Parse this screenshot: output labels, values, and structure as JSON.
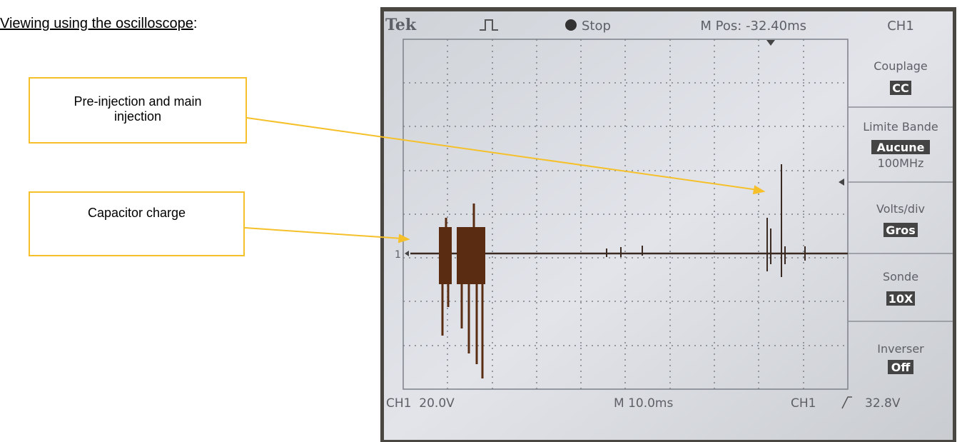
{
  "heading": {
    "title": "Viewing using the oscilloscope",
    "suffix": ":"
  },
  "callouts": [
    {
      "label": "Pre-injection and main injection"
    },
    {
      "label": "Capacitor charge"
    }
  ],
  "scope": {
    "brand": "Tek",
    "status": "Stop",
    "position": "M Pos: -32.40ms",
    "channel": "CH1",
    "menu": [
      {
        "label": "Couplage",
        "value": "CC"
      },
      {
        "label": "Limite Bande",
        "value": "Aucune",
        "note": "100MHz"
      },
      {
        "label": "Volts/div",
        "value": "Gros"
      },
      {
        "label": "Sonde",
        "value": "10X"
      },
      {
        "label": "Inverser",
        "value": "Off"
      }
    ],
    "marker": "1",
    "footer": {
      "scale": "CH1  20.0V",
      "time": "M 10.0ms",
      "trigger": "CH1",
      "trigger_level": "32.8V"
    }
  }
}
